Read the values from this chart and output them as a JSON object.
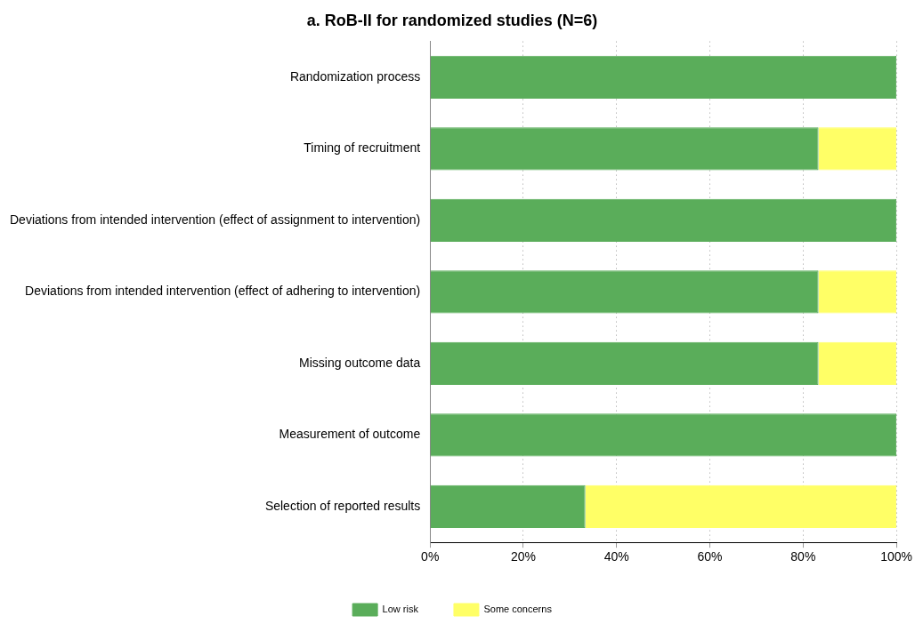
{
  "chart_data": {
    "type": "bar",
    "orientation": "horizontal",
    "stacked": true,
    "title": "a. RoB-II for randomized studies (N=6)",
    "categories": [
      "Randomization process",
      "Timing of recruitment",
      "Deviations from intended intervention (effect of assignment to intervention)",
      "Deviations from intended intervention (effect of adhering to intervention)",
      "Missing outcome data",
      "Measurement of outcome",
      "Selection of reported results"
    ],
    "series": [
      {
        "name": "Low risk",
        "color": "#5aad5a",
        "values": [
          100,
          83.3,
          100,
          83.3,
          83.3,
          100,
          33.3
        ]
      },
      {
        "name": "Some concerns",
        "color": "#ffff66",
        "values": [
          0,
          16.7,
          0,
          16.7,
          16.7,
          0,
          66.7
        ]
      }
    ],
    "xlim": [
      0,
      100
    ],
    "xticks": [
      {
        "value": 0,
        "label": "0%"
      },
      {
        "value": 20,
        "label": "20%"
      },
      {
        "value": 40,
        "label": "40%"
      },
      {
        "value": 60,
        "label": "60%"
      },
      {
        "value": 80,
        "label": "80%"
      },
      {
        "value": 100,
        "label": "100%"
      }
    ],
    "grid": "x",
    "legend": "bottom"
  }
}
